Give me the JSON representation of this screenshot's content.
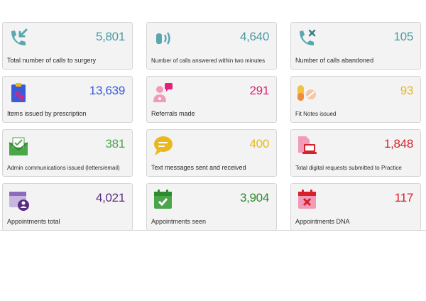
{
  "stats": [
    {
      "value": "5,801",
      "label": "Total number of calls to surgery",
      "color": "#4a9aa6",
      "icon": "incoming-call-icon"
    },
    {
      "value": "4,640",
      "label": "Number of calls answered within two minutes",
      "color": "#4a9aa6",
      "icon": "phone-ringing-icon"
    },
    {
      "value": "105",
      "label": "Number of calls abandoned",
      "color": "#4a9aa6",
      "icon": "missed-call-icon"
    },
    {
      "value": "13,639",
      "label": "Items issued by prescription",
      "color": "#3a5bd9",
      "icon": "prescription-icon"
    },
    {
      "value": "291",
      "label": "Referrals made",
      "color": "#e0227a",
      "icon": "referral-icon"
    },
    {
      "value": "93",
      "label": "Fit Notes issued",
      "color": "#e8b81c",
      "icon": "pills-icon"
    },
    {
      "value": "381",
      "label": "Admin communications issued (letters/email)",
      "color": "#4aa64a",
      "icon": "mail-icon"
    },
    {
      "value": "400",
      "label": "Text messages sent and received",
      "color": "#e8b81c",
      "icon": "chat-bubble-icon"
    },
    {
      "value": "1,848",
      "label": "Total digital requests submitted to Practice",
      "color": "#d6202a",
      "icon": "digital-request-icon"
    },
    {
      "value": "4,021",
      "label": "Appointments total",
      "color": "#5a2d82",
      "icon": "calendar-user-icon"
    },
    {
      "value": "3,904",
      "label": "Appointments seen",
      "color": "#2e8b2e",
      "icon": "calendar-check-icon"
    },
    {
      "value": "117",
      "label": "Appointments DNA",
      "color": "#d6202a",
      "icon": "calendar-cross-icon"
    }
  ]
}
